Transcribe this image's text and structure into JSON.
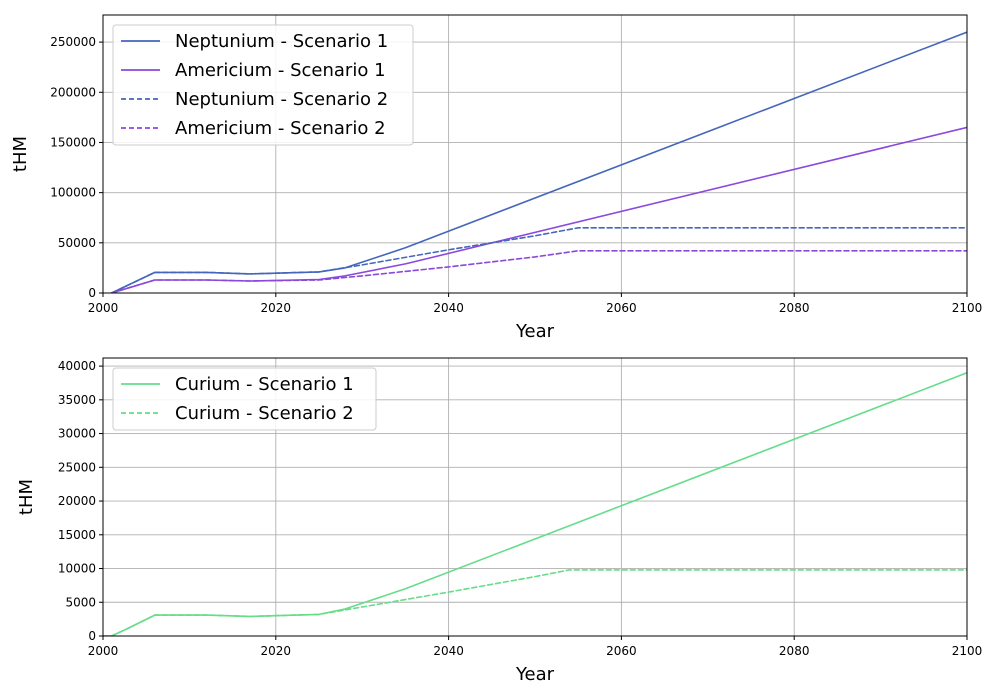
{
  "chart_data": [
    {
      "type": "line",
      "xlabel": "Year",
      "ylabel": "tHM",
      "xlim": [
        2000,
        2100
      ],
      "ylim": [
        0,
        277000
      ],
      "xticks": [
        2000,
        2020,
        2040,
        2060,
        2080,
        2100
      ],
      "yticks": [
        0,
        50000,
        100000,
        150000,
        200000,
        250000
      ],
      "grid": true,
      "legend_position": "top-left",
      "series": [
        {
          "name": "Neptunium - Scenario 1",
          "color": "#4466bb",
          "style": "solid",
          "x": [
            2001,
            2006,
            2012,
            2017,
            2025,
            2028,
            2035,
            2100
          ],
          "y": [
            0,
            20500,
            20500,
            19000,
            21000,
            25000,
            45000,
            260000
          ]
        },
        {
          "name": "Americium - Scenario 1",
          "color": "#8b48dd",
          "style": "solid",
          "x": [
            2001,
            2006,
            2012,
            2017,
            2025,
            2028,
            2035,
            2100
          ],
          "y": [
            0,
            13000,
            13000,
            12000,
            13500,
            17000,
            29000,
            165000
          ]
        },
        {
          "name": "Neptunium - Scenario 2",
          "color": "#4466bb",
          "style": "dashed",
          "x": [
            2001,
            2006,
            2012,
            2017,
            2025,
            2030,
            2040,
            2050,
            2055,
            2100
          ],
          "y": [
            0,
            20500,
            20500,
            19000,
            21000,
            28000,
            43000,
            57000,
            65000,
            65000
          ]
        },
        {
          "name": "Americium - Scenario 2",
          "color": "#8b48dd",
          "style": "dashed",
          "x": [
            2001,
            2006,
            2012,
            2017,
            2025,
            2030,
            2040,
            2050,
            2055,
            2100
          ],
          "y": [
            0,
            13000,
            13000,
            12000,
            13000,
            17000,
            26000,
            36000,
            42000,
            42000
          ]
        }
      ]
    },
    {
      "type": "line",
      "xlabel": "Year",
      "ylabel": "tHM",
      "xlim": [
        2000,
        2100
      ],
      "ylim": [
        0,
        41200
      ],
      "xticks": [
        2000,
        2020,
        2040,
        2060,
        2080,
        2100
      ],
      "yticks": [
        0,
        5000,
        10000,
        15000,
        20000,
        25000,
        30000,
        35000,
        40000
      ],
      "grid": true,
      "legend_position": "top-left",
      "series": [
        {
          "name": "Curium - Scenario 1",
          "color": "#66dd88",
          "style": "solid",
          "x": [
            2000,
            2001,
            2003,
            2006,
            2012,
            2017,
            2025,
            2028,
            2035,
            2100
          ],
          "y": [
            0,
            0,
            1200,
            3100,
            3100,
            2900,
            3200,
            4000,
            7000,
            39000
          ]
        },
        {
          "name": "Curium - Scenario 2",
          "color": "#66dd88",
          "style": "dashed",
          "x": [
            2000,
            2001,
            2003,
            2006,
            2012,
            2017,
            2025,
            2030,
            2040,
            2050,
            2054,
            2100
          ],
          "y": [
            0,
            0,
            1200,
            3100,
            3100,
            2900,
            3200,
            4300,
            6500,
            8800,
            9800,
            9800
          ]
        }
      ]
    }
  ]
}
